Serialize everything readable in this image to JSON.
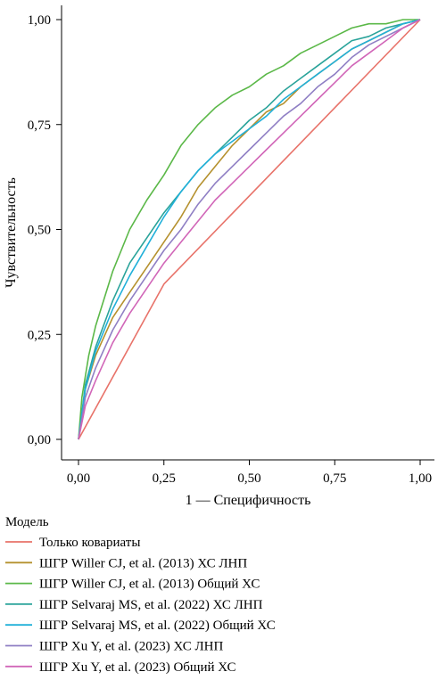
{
  "chart_data": {
    "type": "line",
    "title": "",
    "xlabel": "1 — Специфичность",
    "ylabel": "Чувствительность",
    "xlim": [
      0,
      1
    ],
    "ylim": [
      0,
      1
    ],
    "xticks": [
      0,
      0.25,
      0.5,
      0.75,
      1.0
    ],
    "yticks": [
      0,
      0.25,
      0.5,
      0.75,
      1.0
    ],
    "xtick_labels": [
      "0,00",
      "0,25",
      "0,50",
      "0,75",
      "1,00"
    ],
    "ytick_labels": [
      "0,00",
      "0,25",
      "0,50",
      "0,75",
      "1,00"
    ],
    "grid": false,
    "legend": {
      "title": "Модель",
      "position": "bottom"
    },
    "series": [
      {
        "name": "Только ковариаты",
        "color": "#e8736a",
        "x": [
          0,
          0.25,
          1.0
        ],
        "y": [
          0,
          0.37,
          1.0
        ]
      },
      {
        "name": "ШГР Willer CJ, et al. (2013) ХС ЛНП",
        "color": "#b5912e",
        "x": [
          0,
          0.02,
          0.05,
          0.1,
          0.15,
          0.2,
          0.25,
          0.3,
          0.35,
          0.4,
          0.45,
          0.5,
          0.55,
          0.6,
          0.65,
          0.7,
          0.75,
          0.8,
          0.85,
          0.9,
          0.95,
          1.0
        ],
        "y": [
          0,
          0.12,
          0.2,
          0.29,
          0.35,
          0.41,
          0.47,
          0.53,
          0.6,
          0.65,
          0.7,
          0.74,
          0.78,
          0.8,
          0.84,
          0.87,
          0.9,
          0.93,
          0.95,
          0.97,
          0.99,
          1.0
        ]
      },
      {
        "name": "ШГР Willer CJ, et al. (2013) Общий ХС",
        "color": "#5bb848",
        "x": [
          0,
          0.01,
          0.03,
          0.05,
          0.1,
          0.15,
          0.2,
          0.25,
          0.3,
          0.35,
          0.4,
          0.45,
          0.5,
          0.55,
          0.6,
          0.65,
          0.7,
          0.75,
          0.8,
          0.85,
          0.9,
          0.95,
          1.0
        ],
        "y": [
          0,
          0.1,
          0.2,
          0.27,
          0.4,
          0.5,
          0.57,
          0.63,
          0.7,
          0.75,
          0.79,
          0.82,
          0.84,
          0.87,
          0.89,
          0.92,
          0.94,
          0.96,
          0.98,
          0.99,
          0.99,
          1.0,
          1.0
        ]
      },
      {
        "name": "ШГР Selvaraj MS, et al. (2022) ХС ЛНП",
        "color": "#2aa39a",
        "x": [
          0,
          0.02,
          0.05,
          0.1,
          0.15,
          0.2,
          0.25,
          0.3,
          0.35,
          0.4,
          0.45,
          0.5,
          0.55,
          0.6,
          0.65,
          0.7,
          0.75,
          0.8,
          0.85,
          0.9,
          0.95,
          1.0
        ],
        "y": [
          0,
          0.13,
          0.22,
          0.33,
          0.42,
          0.48,
          0.54,
          0.59,
          0.64,
          0.68,
          0.72,
          0.76,
          0.79,
          0.83,
          0.86,
          0.89,
          0.92,
          0.95,
          0.96,
          0.98,
          0.99,
          1.0
        ]
      },
      {
        "name": "ШГР Selvaraj MS, et al. (2022) Общий ХС",
        "color": "#21b0d9",
        "x": [
          0,
          0.02,
          0.05,
          0.1,
          0.15,
          0.2,
          0.25,
          0.3,
          0.35,
          0.4,
          0.45,
          0.5,
          0.55,
          0.6,
          0.65,
          0.7,
          0.75,
          0.8,
          0.85,
          0.9,
          0.95,
          1.0
        ],
        "y": [
          0,
          0.12,
          0.21,
          0.31,
          0.39,
          0.46,
          0.53,
          0.59,
          0.64,
          0.68,
          0.71,
          0.74,
          0.77,
          0.81,
          0.84,
          0.87,
          0.9,
          0.93,
          0.95,
          0.97,
          0.99,
          1.0
        ]
      },
      {
        "name": "ШГР Xu Y, et al. (2023)  ХС ЛНП",
        "color": "#8f7fc4",
        "x": [
          0,
          0.02,
          0.05,
          0.1,
          0.15,
          0.2,
          0.25,
          0.3,
          0.35,
          0.4,
          0.45,
          0.5,
          0.55,
          0.6,
          0.65,
          0.7,
          0.75,
          0.8,
          0.85,
          0.9,
          0.95,
          1.0
        ],
        "y": [
          0,
          0.1,
          0.17,
          0.26,
          0.33,
          0.39,
          0.45,
          0.5,
          0.56,
          0.61,
          0.65,
          0.69,
          0.73,
          0.77,
          0.8,
          0.84,
          0.87,
          0.91,
          0.94,
          0.96,
          0.98,
          1.0
        ]
      },
      {
        "name": "ШГР Xu Y, et al. (2023)  Общий ХС",
        "color": "#d166b8",
        "x": [
          0,
          0.02,
          0.05,
          0.1,
          0.15,
          0.2,
          0.25,
          0.3,
          0.35,
          0.4,
          0.45,
          0.5,
          0.55,
          0.6,
          0.65,
          0.7,
          0.75,
          0.8,
          0.85,
          0.9,
          0.95,
          1.0
        ],
        "y": [
          0,
          0.08,
          0.14,
          0.23,
          0.3,
          0.36,
          0.42,
          0.47,
          0.52,
          0.57,
          0.61,
          0.65,
          0.69,
          0.73,
          0.77,
          0.81,
          0.85,
          0.89,
          0.92,
          0.95,
          0.98,
          1.0
        ]
      }
    ]
  }
}
